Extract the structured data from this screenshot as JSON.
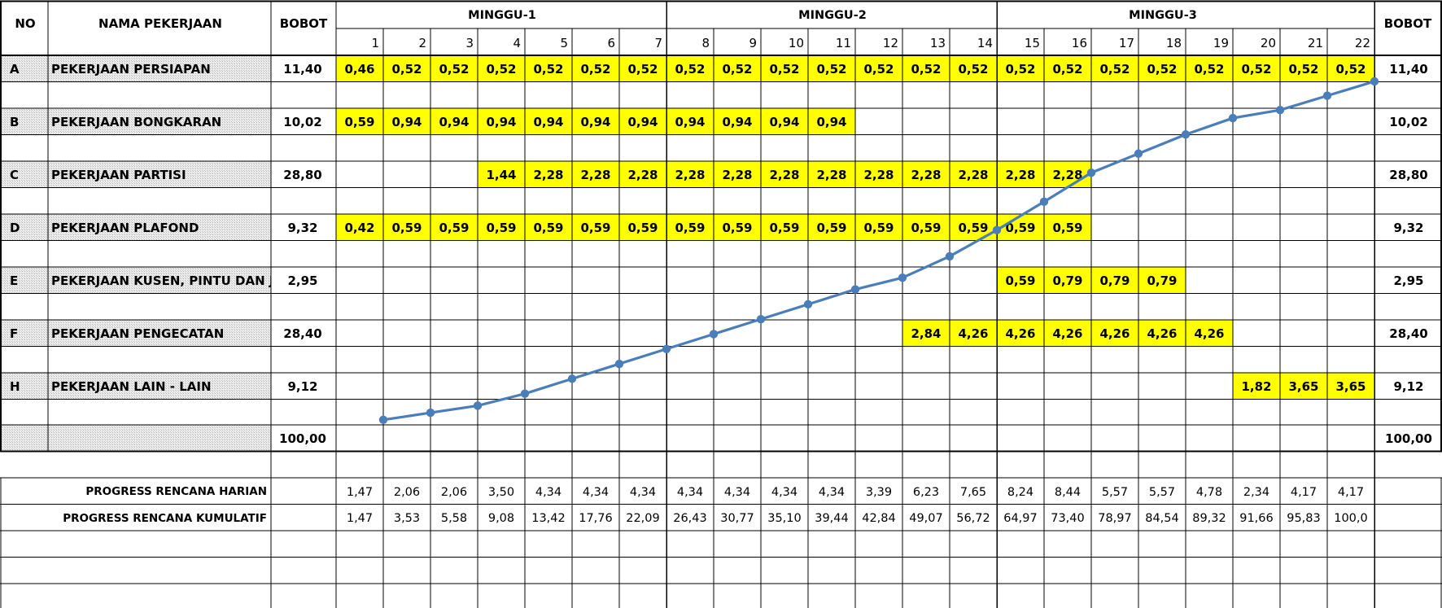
{
  "header": {
    "no": "NO",
    "nama": "NAMA PEKERJAAN",
    "bobot_left": "BOBOT",
    "bobot_right": "BOBOT",
    "weeks": [
      "MINGGU-1",
      "MINGGU-2",
      "MINGGU-3"
    ]
  },
  "days": [
    "1",
    "2",
    "3",
    "4",
    "5",
    "6",
    "7",
    "8",
    "9",
    "10",
    "11",
    "12",
    "13",
    "14",
    "15",
    "16",
    "17",
    "18",
    "19",
    "20",
    "21",
    "22"
  ],
  "tasks": [
    {
      "code": "A",
      "name": "PEKERJAAN PERSIAPAN",
      "bobot": "11,40",
      "start": 1,
      "values": [
        "0,46",
        "0,52",
        "0,52",
        "0,52",
        "0,52",
        "0,52",
        "0,52",
        "0,52",
        "0,52",
        "0,52",
        "0,52",
        "0,52",
        "0,52",
        "0,52",
        "0,52",
        "0,52",
        "0,52",
        "0,52",
        "0,52",
        "0,52",
        "0,52",
        "0,52"
      ]
    },
    {
      "code": "B",
      "name": "PEKERJAAN BONGKARAN",
      "bobot": "10,02",
      "start": 1,
      "values": [
        "0,59",
        "0,94",
        "0,94",
        "0,94",
        "0,94",
        "0,94",
        "0,94",
        "0,94",
        "0,94",
        "0,94",
        "0,94"
      ]
    },
    {
      "code": "C",
      "name": "PEKERJAAN PARTISI",
      "bobot": "28,80",
      "start": 4,
      "values": [
        "1,44",
        "2,28",
        "2,28",
        "2,28",
        "2,28",
        "2,28",
        "2,28",
        "2,28",
        "2,28",
        "2,28",
        "2,28",
        "2,28",
        "2,28"
      ]
    },
    {
      "code": "D",
      "name": "PEKERJAAN PLAFOND",
      "bobot": "9,32",
      "start": 1,
      "values": [
        "0,42",
        "0,59",
        "0,59",
        "0,59",
        "0,59",
        "0,59",
        "0,59",
        "0,59",
        "0,59",
        "0,59",
        "0,59",
        "0,59",
        "0,59",
        "0,59",
        "0,59",
        "0,59"
      ]
    },
    {
      "code": "E",
      "name": "PEKERJAAN KUSEN, PINTU DAN JENDELA",
      "bobot": "2,95",
      "start": 15,
      "values": [
        "0,59",
        "0,79",
        "0,79",
        "0,79"
      ]
    },
    {
      "code": "F",
      "name": "PEKERJAAN PENGECATAN",
      "bobot": "28,40",
      "start": 13,
      "values": [
        "2,84",
        "4,26",
        "4,26",
        "4,26",
        "4,26",
        "4,26",
        "4,26"
      ]
    },
    {
      "code": "H",
      "name": "PEKERJAAN LAIN - LAIN",
      "bobot": "9,12",
      "start": 20,
      "values": [
        "1,82",
        "3,65",
        "3,65"
      ]
    }
  ],
  "total": "100,00",
  "progress": {
    "harian_label": "PROGRESS RENCANA HARIAN",
    "kumulatif_label": "PROGRESS RENCANA KUMULATIF",
    "harian": [
      "1,47",
      "2,06",
      "2,06",
      "3,50",
      "4,34",
      "4,34",
      "4,34",
      "4,34",
      "4,34",
      "4,34",
      "4,34",
      "3,39",
      "6,23",
      "7,65",
      "8,24",
      "8,44",
      "5,57",
      "5,57",
      "4,78",
      "2,34",
      "4,17",
      "4,17"
    ],
    "kumulatif": [
      "1,47",
      "3,53",
      "5,58",
      "9,08",
      "13,42",
      "17,76",
      "22,09",
      "26,43",
      "30,77",
      "35,10",
      "39,44",
      "42,84",
      "49,07",
      "56,72",
      "64,97",
      "73,40",
      "78,97",
      "84,54",
      "89,32",
      "91,66",
      "95,83",
      "100,0"
    ]
  },
  "chart_data": {
    "type": "line",
    "x": [
      1,
      2,
      3,
      4,
      5,
      6,
      7,
      8,
      9,
      10,
      11,
      12,
      13,
      14,
      15,
      16,
      17,
      18,
      19,
      20,
      21,
      22
    ],
    "series": [
      {
        "values": [
          1.47,
          3.53,
          5.58,
          9.08,
          13.42,
          17.76,
          22.09,
          26.43,
          30.77,
          35.1,
          39.44,
          42.84,
          49.07,
          56.72,
          64.97,
          73.4,
          78.97,
          84.54,
          89.32,
          91.66,
          95.83,
          100.0
        ]
      }
    ],
    "ylim": [
      0,
      100
    ],
    "grid": true,
    "colors": {
      "line": "#4A7EBB",
      "highlight": "#FFFF00",
      "hatch": "#DADADA"
    }
  }
}
